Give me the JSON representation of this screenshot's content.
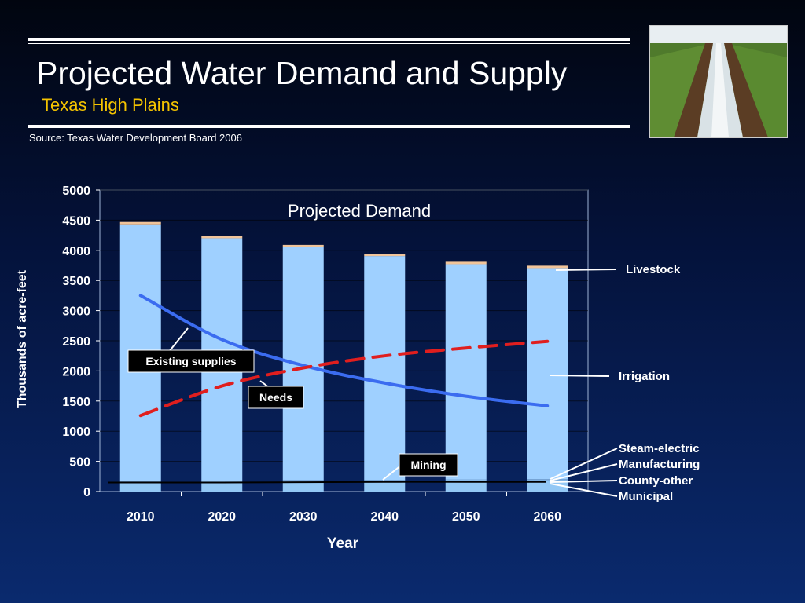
{
  "slide": {
    "title": "Projected Water Demand and Supply",
    "subtitle": "Texas High Plains",
    "source": "Source:  Texas Water Development Board 2006",
    "accent_color": "#f5c400",
    "photo": "irrigated-cotton-field-photo"
  },
  "chart_data": {
    "type": "bar",
    "title": "Projected Demand",
    "xlabel": "Year",
    "ylabel": "Thousands of acre-feet",
    "ylim": [
      0,
      5000
    ],
    "yticks": [
      0,
      500,
      1000,
      1500,
      2000,
      2500,
      3000,
      3500,
      4000,
      4500,
      5000
    ],
    "categories": [
      "2010",
      "2020",
      "2030",
      "2040",
      "2050",
      "2060"
    ],
    "stacked_series": [
      {
        "name": "Municipal",
        "values": [
          140,
          150,
          160,
          165,
          170,
          175
        ],
        "color": "#93c8f5"
      },
      {
        "name": "County-other",
        "values": [
          10,
          10,
          10,
          10,
          10,
          10
        ],
        "color": "#93c8f5"
      },
      {
        "name": "Manufacturing",
        "values": [
          10,
          10,
          10,
          10,
          10,
          10
        ],
        "color": "#93c8f5"
      },
      {
        "name": "Steam-electric",
        "values": [
          5,
          5,
          5,
          5,
          5,
          5
        ],
        "color": "#93c8f5"
      },
      {
        "name": "Mining",
        "values": [
          5,
          5,
          5,
          5,
          5,
          5
        ],
        "color": "#93c8f5"
      },
      {
        "name": "Irrigation",
        "values": [
          4260,
          4020,
          3860,
          3710,
          3570,
          3500
        ],
        "color": "#9fd0ff"
      },
      {
        "name": "Livestock",
        "values": [
          40,
          40,
          40,
          40,
          40,
          40
        ],
        "color": "#f0c49a"
      }
    ],
    "lines": [
      {
        "name": "Existing supplies",
        "values": [
          3250,
          2520,
          2090,
          1800,
          1580,
          1420
        ],
        "color": "#3b6cf0",
        "dash": false
      },
      {
        "name": "Needs",
        "values": [
          1260,
          1750,
          2050,
          2250,
          2380,
          2490
        ],
        "color": "#e01e1e",
        "dash": true
      }
    ],
    "baseline_line": {
      "values": [
        150,
        150,
        155,
        160,
        160,
        160
      ],
      "color": "#000000"
    },
    "callouts": {
      "existing_supplies": "Existing supplies",
      "needs": "Needs",
      "mining": "Mining"
    },
    "legend_right": [
      "Livestock",
      "Irrigation",
      "Steam-electric",
      "Manufacturing",
      "County-other",
      "Municipal"
    ]
  }
}
